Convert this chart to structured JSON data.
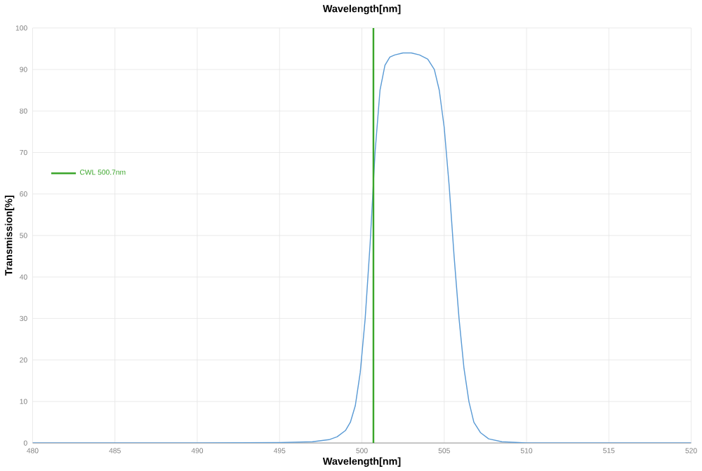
{
  "chart_data": {
    "type": "line",
    "title": "Wavelength[nm]",
    "xlabel": "Wavelength[nm]",
    "ylabel": "Transmission[%]",
    "xlim": [
      480,
      520
    ],
    "xticks": [
      480,
      485,
      490,
      495,
      500,
      505,
      510,
      515,
      520
    ],
    "ylim": [
      0,
      100
    ],
    "yticks": [
      0,
      10,
      20,
      30,
      40,
      50,
      60,
      70,
      80,
      90,
      100
    ],
    "grid": true,
    "legend": "left",
    "series": [
      {
        "color": "#5b9bd5",
        "x": [
          480,
          485,
          490,
          495,
          497,
          498,
          498.5,
          499,
          499.3,
          499.6,
          499.9,
          500.2,
          500.5,
          500.8,
          501.1,
          501.4,
          501.7,
          502,
          502.5,
          503,
          503.5,
          504,
          504.4,
          504.7,
          505,
          505.3,
          505.6,
          505.9,
          506.2,
          506.5,
          506.8,
          507.2,
          507.7,
          508.5,
          510,
          515,
          520
        ],
        "values": [
          0,
          0,
          0,
          0.1,
          0.3,
          0.8,
          1.5,
          3,
          5,
          9,
          17,
          30,
          48,
          70,
          85,
          91,
          93,
          93.5,
          94,
          94,
          93.5,
          92.5,
          90,
          85,
          76,
          62,
          45,
          30,
          18,
          10,
          5,
          2.5,
          1,
          0.3,
          0,
          0,
          0
        ]
      },
      {
        "name": "CWL 500.7nm",
        "color": "#3aa52a",
        "x": [
          500.7,
          500.7
        ],
        "values": [
          0,
          100
        ]
      }
    ]
  }
}
